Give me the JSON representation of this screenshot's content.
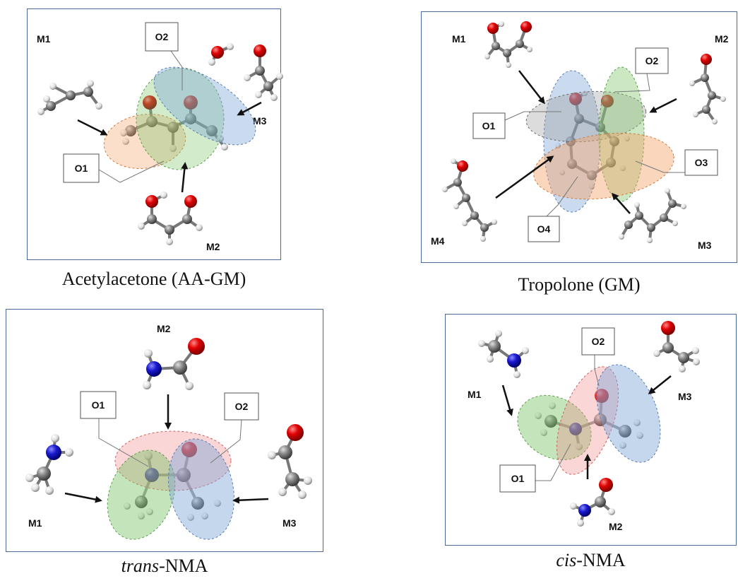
{
  "panels": {
    "aa": {
      "caption": "Acetylacetone (AA-GM)",
      "fragments": [
        "M1",
        "M2",
        "M3"
      ],
      "overlaps": [
        "O1",
        "O2"
      ]
    },
    "tropolone": {
      "caption": "Tropolone (GM)",
      "fragments": [
        "M1",
        "M2",
        "M3",
        "M4"
      ],
      "overlaps": [
        "O1",
        "O2",
        "O3",
        "O4"
      ]
    },
    "trans_nma": {
      "caption_italic": "trans",
      "caption_rest": "-NMA",
      "fragments": [
        "M1",
        "M2",
        "M3"
      ],
      "overlaps": [
        "O1",
        "O2"
      ]
    },
    "cis_nma": {
      "caption_italic": "cis",
      "caption_rest": "-NMA",
      "fragments": [
        "M1",
        "M2",
        "M3"
      ],
      "overlaps": [
        "O1",
        "O2"
      ]
    }
  },
  "colors": {
    "oxygen": "#d40000",
    "nitrogen": "#1a1ad0",
    "carbon": "#808080",
    "hydrogen": "#e8e8e8",
    "overlap_orange": "#f4a36a",
    "overlap_green": "#7cc66a",
    "overlap_blue": "#7ea6d8",
    "overlap_gray": "#9a9a9a",
    "overlap_red": "#f08a8a",
    "panel_border": "#4a6a9a"
  }
}
